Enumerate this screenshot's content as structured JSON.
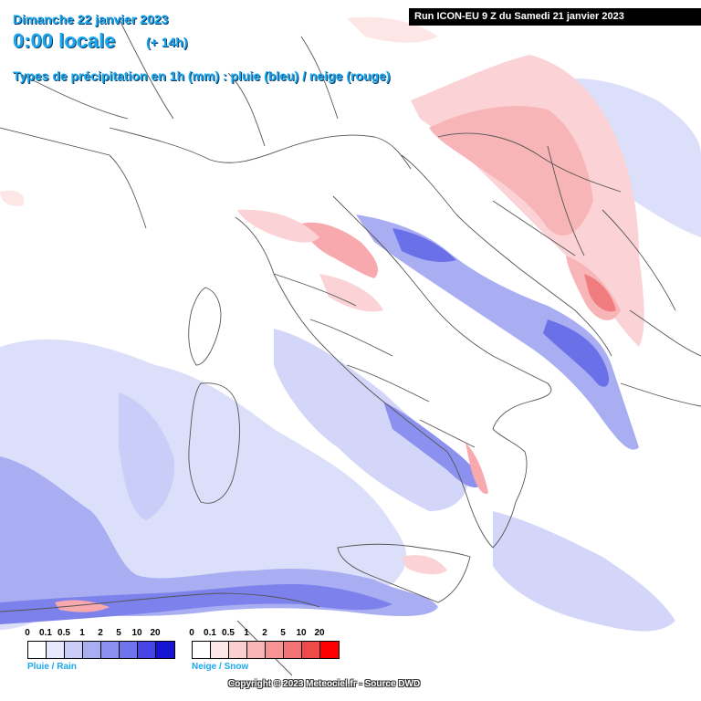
{
  "header": {
    "date": "Dimanche 22 janvier 2023",
    "hour": "0:00 locale",
    "offset": "(+ 14h)",
    "legend_title": "Types de précipitation en 1h (mm) : pluie (bleu) / neige (rouge)",
    "run": "Run ICON-EU 9 Z du Samedi 21 janvier 2023"
  },
  "legend": {
    "rain": {
      "label": "Pluie / Rain",
      "ticks": [
        "0",
        "0.1",
        "0.5",
        "1",
        "2",
        "5",
        "10",
        "20"
      ],
      "colors": [
        "#ffffff",
        "#e6e8fb",
        "#c9cdf7",
        "#a9aef3",
        "#8c91f0",
        "#6f73ec",
        "#4646e6",
        "#1515d6"
      ]
    },
    "snow": {
      "label": "Neige / Snow",
      "ticks": [
        "0",
        "0.1",
        "0.5",
        "1",
        "2",
        "5",
        "10",
        "20"
      ],
      "colors": [
        "#ffffff",
        "#fde6e6",
        "#fbcfcf",
        "#f9b4b4",
        "#f69494",
        "#f27373",
        "#ee4a4a",
        "#ff0000"
      ]
    }
  },
  "copyright": "Copyright © 2023 Meteociel.fr - Source DWD",
  "colors": {
    "title": "#1aa9f0",
    "rain_light": "#d7daf8",
    "rain_medium": "#a7acf1",
    "rain_strong": "#6a70e8",
    "snow_light": "#fbd3d6",
    "snow_medium": "#f7a9ad",
    "snow_strong": "#f07c80",
    "border": "#555555"
  }
}
